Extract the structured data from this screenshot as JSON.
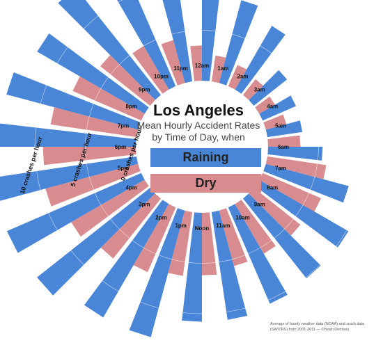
{
  "title": "Los Angeles",
  "subtitle_line1": "Mean Hourly Accident Rates",
  "subtitle_line2": "by Time of Day, when",
  "legend": {
    "raining": "Raining",
    "dry": "Dry",
    "raining_color": "#4a86d8",
    "dry_color": "#d98c8f"
  },
  "source_note": "Average of hourly weather data (NOAA) and crash data (SWITRS) from 2001-2011 — ©Noah Demeau",
  "scale_labels": [
    "10 crashes per hour",
    "5 crashes per hour",
    "0 crashes per hour"
  ],
  "chart_data": {
    "type": "bar",
    "layout": "radial",
    "categories": [
      "12am",
      "1am",
      "2am",
      "3am",
      "4am",
      "5am",
      "6am",
      "7am",
      "8am",
      "9am",
      "10am",
      "11am",
      "Noon",
      "1pm",
      "2pm",
      "3pm",
      "4pm",
      "5pm",
      "6pm",
      "7pm",
      "8pm",
      "9pm",
      "10pm",
      "11pm"
    ],
    "series": [
      {
        "name": "Raining",
        "values": [
          8.3,
          8.5,
          7.3,
          4.2,
          3.6,
          3.5,
          5.4,
          8.5,
          10.2,
          10.1,
          10.4,
          10.8,
          10.8,
          13.0,
          13.0,
          14.3,
          14.5,
          14.5,
          15.0,
          13.5,
          12.3,
          13.6,
          12.5,
          13.6
        ]
      },
      {
        "name": "Dry",
        "values": [
          3.5,
          2.6,
          2.3,
          2.0,
          1.8,
          2.1,
          3.2,
          5.9,
          6.3,
          5.9,
          5.7,
          5.7,
          6.2,
          6.4,
          7.0,
          7.6,
          8.4,
          9.5,
          9.2,
          8.6,
          7.4,
          6.3,
          5.0,
          4.4
        ]
      }
    ],
    "axis_range": [
      0,
      15
    ],
    "radial_scale_ticks": [
      0,
      5,
      10
    ]
  }
}
